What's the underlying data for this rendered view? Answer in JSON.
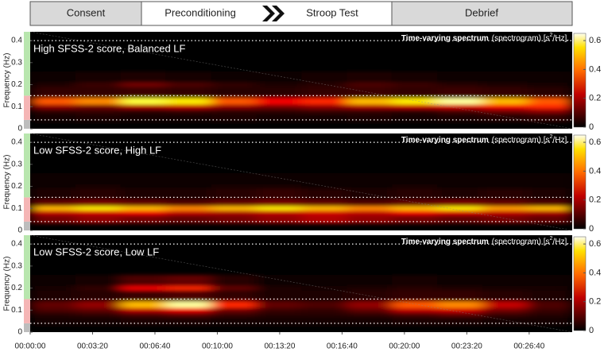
{
  "phases": [
    "Consent",
    "Preconditioning",
    "Stroop Test",
    "Debrief"
  ],
  "chart_data": [
    {
      "type": "heatmap",
      "label": "High SFSS-2 score, Balanced LF",
      "spectrum_title": "Time-varying spectrum",
      "spectrum_units": [
        "(spectrogram) [s",
        "2",
        "/Hz]."
      ],
      "ylabel": "Frequency (Hz)",
      "colormap": "hot",
      "x_bins": [
        0,
        145,
        290,
        435,
        580,
        725,
        870,
        1015,
        1160,
        1305,
        1450,
        1595,
        1738
      ],
      "y_bins": [
        0.03,
        0.07,
        0.09,
        0.11,
        0.14,
        0.19,
        0.21,
        0.26
      ],
      "values": [
        [
          0.02,
          0.03,
          0.02,
          0.02,
          0.03,
          0.02,
          0.02,
          0.03,
          0.02,
          0.03,
          0.04,
          0.05
        ],
        [
          0.05,
          0.06,
          0.05,
          0.06,
          0.05,
          0.05,
          0.06,
          0.06,
          0.05,
          0.08,
          0.12,
          0.15
        ],
        [
          0.15,
          0.12,
          0.18,
          0.2,
          0.15,
          0.12,
          0.15,
          0.18,
          0.2,
          0.22,
          0.25,
          0.3
        ],
        [
          0.35,
          0.4,
          0.55,
          0.5,
          0.35,
          0.25,
          0.3,
          0.45,
          0.5,
          0.6,
          0.45,
          0.35
        ],
        [
          0.05,
          0.05,
          0.06,
          0.05,
          0.04,
          0.04,
          0.05,
          0.06,
          0.05,
          0.06,
          0.05,
          0.04
        ],
        [
          0.03,
          0.06,
          0.12,
          0.08,
          0.05,
          0.03,
          0.04,
          0.08,
          0.06,
          0.04,
          0.03,
          0.02
        ],
        [
          0.01,
          0.02,
          0.03,
          0.02,
          0.01,
          0.01,
          0.02,
          0.03,
          0.02,
          0.01,
          0.01,
          0.01
        ]
      ],
      "xlim": [
        0,
        1738
      ],
      "ylim": [
        0,
        0.44
      ],
      "yticks": [
        0,
        0.1,
        0.2,
        0.3,
        0.4
      ],
      "band_lines": [
        0.04,
        0.15,
        0.4
      ],
      "clim": [
        0,
        0.65
      ],
      "cticks": [
        0,
        0.2,
        0.4,
        0.6
      ]
    },
    {
      "type": "heatmap",
      "label": "Low SFSS-2 score, High LF",
      "spectrum_title": "Time-varying spectrum",
      "spectrum_units": [
        "(spectrogram) [s",
        "2",
        "/Hz]."
      ],
      "ylabel": "Frequency (Hz)",
      "colormap": "hot",
      "x_bins": [
        0,
        145,
        290,
        435,
        580,
        725,
        870,
        1015,
        1160,
        1305,
        1450,
        1595,
        1738
      ],
      "y_bins": [
        0.03,
        0.07,
        0.09,
        0.11,
        0.14,
        0.19,
        0.21,
        0.26
      ],
      "values": [
        [
          0.12,
          0.15,
          0.12,
          0.1,
          0.12,
          0.15,
          0.18,
          0.15,
          0.12,
          0.1,
          0.12,
          0.1
        ],
        [
          0.2,
          0.22,
          0.25,
          0.2,
          0.18,
          0.2,
          0.22,
          0.2,
          0.25,
          0.22,
          0.2,
          0.18
        ],
        [
          0.45,
          0.5,
          0.45,
          0.4,
          0.45,
          0.5,
          0.45,
          0.4,
          0.45,
          0.5,
          0.42,
          0.45
        ],
        [
          0.1,
          0.12,
          0.1,
          0.08,
          0.1,
          0.12,
          0.1,
          0.08,
          0.1,
          0.12,
          0.1,
          0.08
        ],
        [
          0.03,
          0.04,
          0.03,
          0.03,
          0.04,
          0.05,
          0.04,
          0.03,
          0.04,
          0.03,
          0.04,
          0.03
        ],
        [
          0.01,
          0.02,
          0.01,
          0.01,
          0.02,
          0.02,
          0.01,
          0.01,
          0.02,
          0.01,
          0.01,
          0.01
        ],
        [
          0.01,
          0.01,
          0.01,
          0.01,
          0.01,
          0.01,
          0.01,
          0.01,
          0.01,
          0.01,
          0.01,
          0.01
        ]
      ],
      "xlim": [
        0,
        1738
      ],
      "ylim": [
        0,
        0.44
      ],
      "yticks": [
        0,
        0.1,
        0.2,
        0.3,
        0.4
      ],
      "band_lines": [
        0.04,
        0.15,
        0.4
      ],
      "clim": [
        0,
        0.65
      ],
      "cticks": [
        0,
        0.2,
        0.4,
        0.6
      ]
    },
    {
      "type": "heatmap",
      "label": "Low SFSS-2 score, Low LF",
      "spectrum_title": "Time-varying spectrum",
      "spectrum_units": [
        "(spectrogram) [s",
        "2",
        "/Hz]."
      ],
      "ylabel": "Frequency (Hz)",
      "colormap": "hot",
      "x_bins": [
        0,
        145,
        290,
        435,
        580,
        725,
        870,
        1015,
        1160,
        1305,
        1450,
        1595,
        1738
      ],
      "y_bins": [
        0.03,
        0.07,
        0.09,
        0.11,
        0.14,
        0.19,
        0.21,
        0.26
      ],
      "values": [
        [
          0.02,
          0.02,
          0.03,
          0.03,
          0.02,
          0.02,
          0.02,
          0.02,
          0.03,
          0.03,
          0.02,
          0.02
        ],
        [
          0.04,
          0.05,
          0.08,
          0.1,
          0.06,
          0.04,
          0.04,
          0.05,
          0.08,
          0.1,
          0.06,
          0.04
        ],
        [
          0.08,
          0.1,
          0.2,
          0.25,
          0.12,
          0.06,
          0.05,
          0.1,
          0.2,
          0.22,
          0.12,
          0.06
        ],
        [
          0.1,
          0.15,
          0.45,
          0.6,
          0.3,
          0.1,
          0.08,
          0.15,
          0.35,
          0.4,
          0.2,
          0.08
        ],
        [
          0.03,
          0.04,
          0.06,
          0.08,
          0.05,
          0.03,
          0.03,
          0.04,
          0.05,
          0.05,
          0.04,
          0.03
        ],
        [
          0.02,
          0.05,
          0.25,
          0.3,
          0.1,
          0.03,
          0.02,
          0.03,
          0.04,
          0.03,
          0.02,
          0.02
        ],
        [
          0.01,
          0.02,
          0.08,
          0.1,
          0.04,
          0.01,
          0.01,
          0.01,
          0.02,
          0.01,
          0.01,
          0.01
        ]
      ],
      "xlim": [
        0,
        1738
      ],
      "ylim": [
        0,
        0.44
      ],
      "yticks": [
        0,
        0.1,
        0.2,
        0.3,
        0.4
      ],
      "xticks": [
        {
          "value": 0,
          "label": "00:00:00"
        },
        {
          "value": 200,
          "label": "00:03:20"
        },
        {
          "value": 400,
          "label": "00:06:40"
        },
        {
          "value": 600,
          "label": "00:10:00"
        },
        {
          "value": 800,
          "label": "00:13:20"
        },
        {
          "value": 1000,
          "label": "00:16:40"
        },
        {
          "value": 1200,
          "label": "00:20:00"
        },
        {
          "value": 1400,
          "label": "00:23:20"
        },
        {
          "value": 1600,
          "label": "00:26:40"
        }
      ],
      "band_lines": [
        0.04,
        0.15,
        0.4
      ],
      "clim": [
        0,
        0.65
      ],
      "cticks": [
        0,
        0.2,
        0.4,
        0.6
      ]
    }
  ]
}
